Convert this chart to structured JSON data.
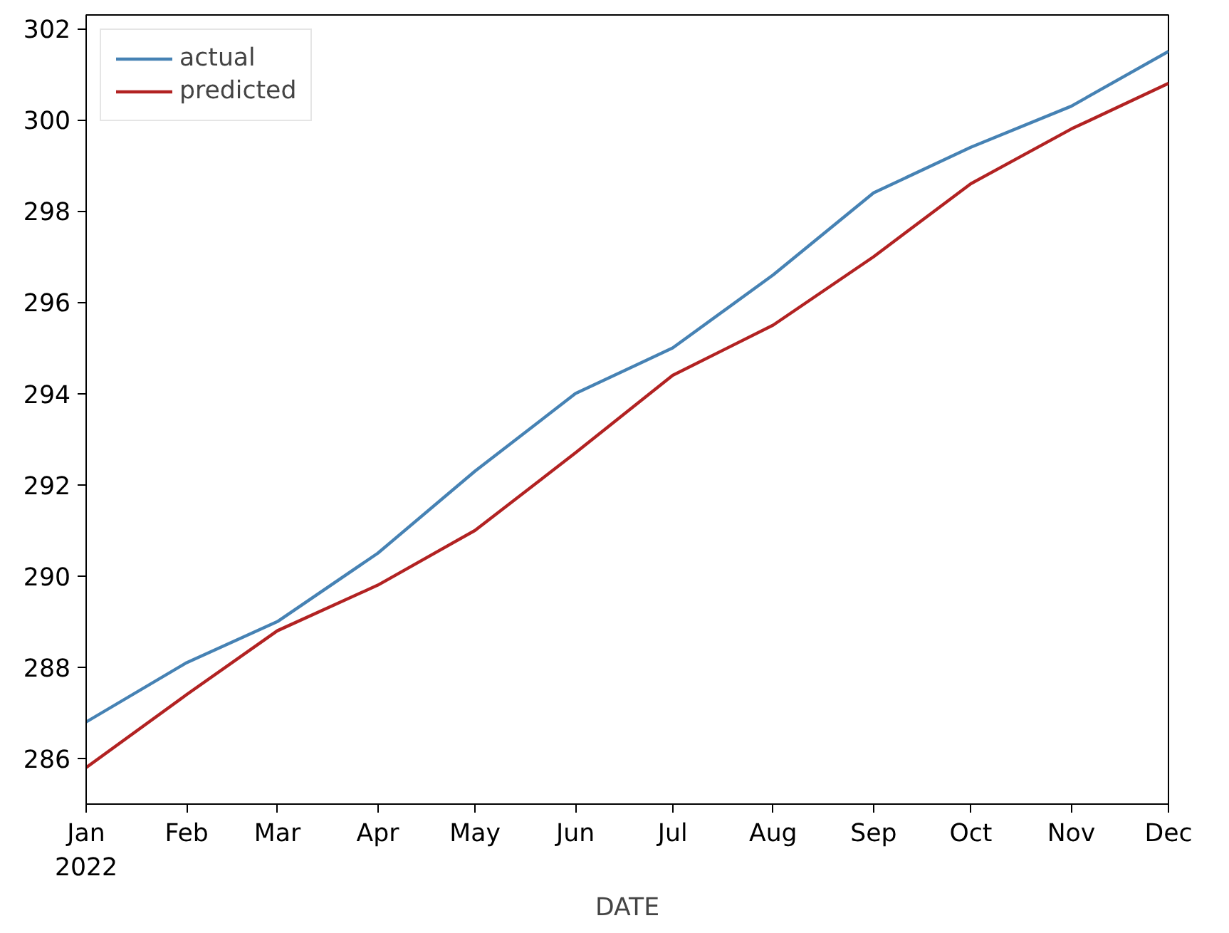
{
  "chart_data": {
    "type": "line",
    "xlabel": "DATE",
    "x": [
      "2022-01",
      "2022-02",
      "2022-03",
      "2022-04",
      "2022-05",
      "2022-06",
      "2022-07",
      "2022-08",
      "2022-09",
      "2022-10",
      "2022-11",
      "2022-12"
    ],
    "series": [
      {
        "name": "actual",
        "color": "#4682b4",
        "values": [
          286.8,
          288.1,
          289.0,
          290.5,
          292.3,
          294.0,
          295.0,
          296.6,
          298.4,
          299.4,
          300.3,
          301.5
        ]
      },
      {
        "name": "predicted",
        "color": "#b22222",
        "values": [
          285.8,
          287.4,
          288.8,
          289.8,
          291.0,
          292.7,
          294.4,
          295.5,
          297.0,
          298.6,
          299.8,
          300.8
        ]
      }
    ],
    "xlim": [
      "2022-01",
      "2022-12"
    ],
    "xticks": [
      {
        "value": "2022-01",
        "label": "Jan\n2022"
      },
      {
        "value": "2022-02",
        "label": "Feb"
      },
      {
        "value": "2022-03",
        "label": "Mar"
      },
      {
        "value": "2022-04",
        "label": "Apr"
      },
      {
        "value": "2022-05",
        "label": "May"
      },
      {
        "value": "2022-06",
        "label": "Jun"
      },
      {
        "value": "2022-07",
        "label": "Jul"
      },
      {
        "value": "2022-08",
        "label": "Aug"
      },
      {
        "value": "2022-09",
        "label": "Sep"
      },
      {
        "value": "2022-10",
        "label": "Oct"
      },
      {
        "value": "2022-11",
        "label": "Nov"
      },
      {
        "value": "2022-12",
        "label": "Dec"
      }
    ],
    "ylim": [
      285.0,
      302.3
    ],
    "yticks": [
      286,
      288,
      290,
      292,
      294,
      296,
      298,
      300,
      302
    ],
    "grid": false,
    "legend": "top left",
    "marker": "none",
    "line_style": "solid"
  }
}
